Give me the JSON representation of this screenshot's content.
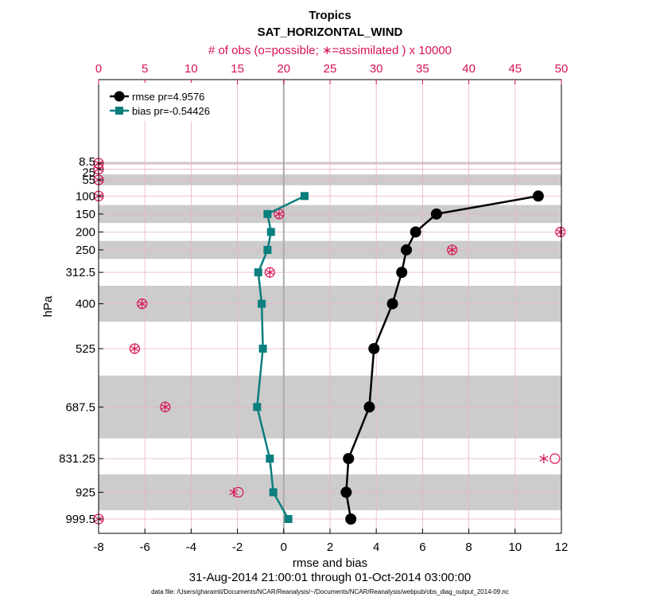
{
  "chart_data": {
    "type": "line",
    "title": "Tropics",
    "subtitle": "SAT_HORIZONTAL_WIND",
    "top_axis_label": "# of obs (o=possible; ∗=assimilated ) x 10000",
    "xlabel": "rmse and bias",
    "ylabel": "hPa",
    "date_range": "31-Aug-2014 21:00:01 through 01-Oct-2014 03:00:00",
    "footer": "data file: /Users/gharamti/Documents/NCAR/Reanalysis/~/Documents/NCAR/Reanalysis/webpub/obs_diag_output_2014-09.nc",
    "xlim": [
      -8,
      12
    ],
    "x_ticks": [
      -8,
      -6,
      -4,
      -2,
      0,
      2,
      4,
      6,
      8,
      10,
      12
    ],
    "top_xlim": [
      0,
      50
    ],
    "top_ticks": [
      0,
      5,
      10,
      15,
      20,
      25,
      30,
      35,
      40,
      45,
      50
    ],
    "pressure_levels": [
      "8.5",
      "25",
      "55",
      "100",
      "150",
      "200",
      "250",
      "312.5",
      "400",
      "525",
      "687.5",
      "831.25",
      "925",
      "999.5"
    ],
    "pressure_values": [
      8.5,
      25,
      55,
      100,
      150,
      200,
      250,
      312.5,
      400,
      525,
      687.5,
      831.25,
      925,
      999.5
    ],
    "series": [
      {
        "name": "rmse pr=4.9576",
        "color": "#000000",
        "marker": "circle",
        "x": [
          11.0,
          6.6,
          5.7,
          5.3,
          5.1,
          4.7,
          3.9,
          3.7,
          2.8,
          2.7,
          2.9
        ],
        "y": [
          100,
          150,
          200,
          250,
          312.5,
          400,
          525,
          687.5,
          831.25,
          925,
          999.5
        ]
      },
      {
        "name": "bias pr=-0.54426",
        "color": "#0b7e7e",
        "marker": "square",
        "x": [
          0.9,
          -0.7,
          -0.55,
          -0.7,
          -1.1,
          -0.95,
          -0.9,
          -1.15,
          -0.6,
          -0.45,
          0.2
        ],
        "y": [
          100,
          150,
          200,
          250,
          312.5,
          400,
          525,
          687.5,
          831.25,
          925,
          999.5
        ]
      }
    ],
    "obs_counts": [
      {
        "level": 8.5,
        "possible": 0,
        "assimilated": 0
      },
      {
        "level": 25,
        "possible": 0,
        "assimilated": 0
      },
      {
        "level": 55,
        "possible": 0,
        "assimilated": 0
      },
      {
        "level": 100,
        "possible": 0,
        "assimilated": 0
      },
      {
        "level": 150,
        "possible": 19.5,
        "assimilated": 19.5
      },
      {
        "level": 200,
        "possible": 49.9,
        "assimilated": 49.9
      },
      {
        "level": 250,
        "possible": 38.2,
        "assimilated": 38.2
      },
      {
        "level": 312.5,
        "possible": 18.5,
        "assimilated": 18.5
      },
      {
        "level": 400,
        "possible": 4.7,
        "assimilated": 4.7
      },
      {
        "level": 525,
        "possible": 3.9,
        "assimilated": 3.9
      },
      {
        "level": 687.5,
        "possible": 7.2,
        "assimilated": 7.2
      },
      {
        "level": 831.25,
        "possible": 49.3,
        "assimilated": 48.1
      },
      {
        "level": 925,
        "possible": 15.1,
        "assimilated": 14.6
      },
      {
        "level": 999.5,
        "possible": 0,
        "assimilated": 0
      }
    ],
    "shaded_bands": [
      [
        5,
        12
      ],
      [
        40,
        70
      ],
      [
        125,
        175
      ],
      [
        225,
        275
      ],
      [
        350,
        450
      ],
      [
        600,
        775
      ],
      [
        875,
        975
      ]
    ],
    "grid": true,
    "legend_position": "top-left",
    "colors": {
      "obs": "#d6134f",
      "band": "#cccccc",
      "zero_line": "#aaaaaa",
      "grid": "#e6b3c4"
    }
  }
}
